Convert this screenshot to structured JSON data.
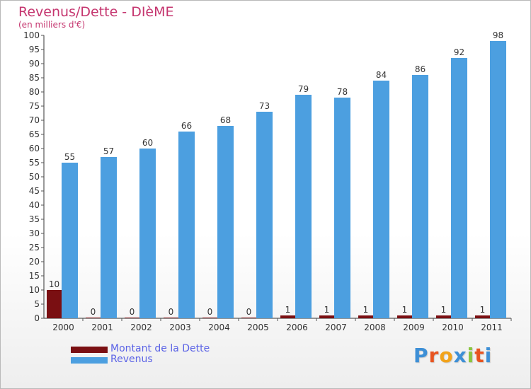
{
  "header": {
    "title": "Revenus/Dette - DIèME",
    "subtitle": "(en milliers d'€)"
  },
  "legend": {
    "debt_label": "Montant de la Dette",
    "revenue_label": "Revenus"
  },
  "logo": {
    "letters": [
      "P",
      "r",
      "o",
      "x",
      "i",
      "t",
      "i"
    ],
    "colors": [
      "#3d8fd6",
      "#e8531f",
      "#f2a31b",
      "#3d8fd6",
      "#8bc540",
      "#e8531f",
      "#3d8fd6"
    ]
  },
  "colors": {
    "debt": "#7a0f12",
    "revenue": "#4c9fe0",
    "axis": "#333333",
    "grid_tick": "#555555"
  },
  "chart_data": {
    "type": "bar",
    "categories": [
      "2000",
      "2001",
      "2002",
      "2003",
      "2004",
      "2005",
      "2006",
      "2007",
      "2008",
      "2009",
      "2010",
      "2011"
    ],
    "series": [
      {
        "name": "Montant de la Dette",
        "values": [
          10,
          0,
          0,
          0,
          0,
          0,
          1,
          1,
          1,
          1,
          1,
          1
        ]
      },
      {
        "name": "Revenus",
        "values": [
          55,
          57,
          60,
          66,
          68,
          73,
          79,
          78,
          84,
          86,
          92,
          98
        ]
      }
    ],
    "ylim": [
      0,
      100
    ],
    "ytick_step": 5,
    "grid": false,
    "legend_position": "bottom-left"
  }
}
